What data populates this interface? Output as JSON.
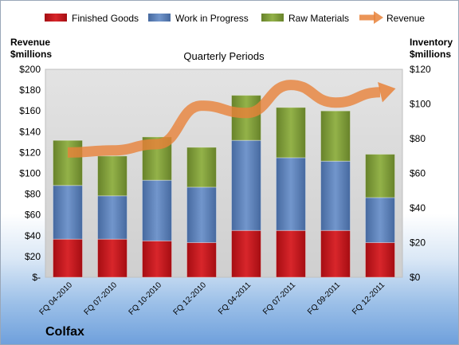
{
  "chart_data": {
    "type": "bar",
    "stacked": true,
    "company": "Colfax",
    "title": "Quarterly Periods",
    "left_axis_label": [
      "Revenue",
      "$millions"
    ],
    "right_axis_label": [
      "Inventory",
      "$millions"
    ],
    "categories": [
      "FQ 04-2010",
      "FQ 07-2010",
      "FQ 10-2010",
      "FQ 12-2010",
      "FQ 04-2011",
      "FQ 07-2011",
      "FQ 09-2011",
      "FQ 12-2011"
    ],
    "left_axis": {
      "min": 0,
      "max": 200,
      "step": 20,
      "ticks": [
        "$-",
        "$20",
        "$40",
        "$60",
        "$80",
        "$100",
        "$120",
        "$140",
        "$160",
        "$180",
        "$200"
      ]
    },
    "right_axis": {
      "min": 0,
      "max": 120,
      "step": 20,
      "ticks": [
        "$0",
        "$20",
        "$40",
        "$60",
        "$80",
        "$100",
        "$120"
      ]
    },
    "series": [
      {
        "name": "Finished Goods",
        "axis": "right",
        "kind": "bar",
        "color": "#c0141a",
        "values": [
          22,
          22,
          21,
          20,
          27,
          27,
          27,
          20
        ]
      },
      {
        "name": "Work in Progress",
        "axis": "right",
        "kind": "bar",
        "color": "#5b7fb8",
        "values": [
          31,
          25,
          35,
          32,
          52,
          42,
          40,
          26
        ]
      },
      {
        "name": "Raw Materials",
        "axis": "right",
        "kind": "bar",
        "color": "#7e9b35",
        "values": [
          26,
          23,
          25,
          23,
          26,
          29,
          29,
          25
        ]
      },
      {
        "name": "Revenue",
        "axis": "left",
        "kind": "line",
        "color": "#e8823a",
        "values": [
          120,
          122,
          128,
          165,
          158,
          185,
          168,
          178
        ]
      }
    ],
    "legend_position": "top",
    "grid": false
  }
}
